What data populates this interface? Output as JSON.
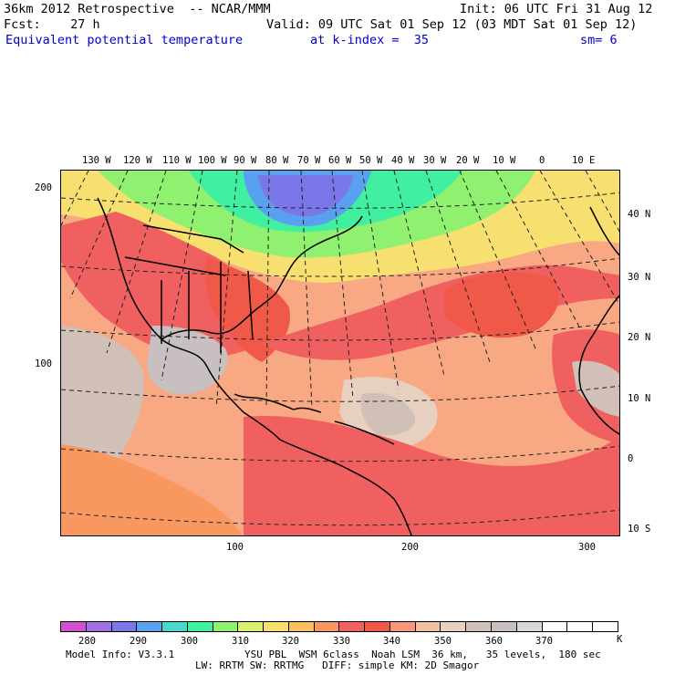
{
  "header": {
    "line1_left": "36km 2012 Retrospective  -- NCAR/MMM",
    "line1_right": "Init: 06 UTC Fri 31 Aug 12",
    "line2_left": "Fcst:    27 h",
    "line2_right": "Valid: 09 UTC Sat 01 Sep 12 (03 MDT Sat 01 Sep 12)",
    "line3_field": "Equivalent potential temperature",
    "line3_level": "at k-index =  35",
    "line3_smooth": "sm= 6"
  },
  "axes": {
    "top_lon": [
      "130 W",
      "120 W",
      "110 W",
      "100 W",
      "90 W",
      "80 W",
      "70 W",
      "60 W",
      "50 W",
      "40 W",
      "30 W",
      "20 W",
      "10 W",
      "0",
      "10 E"
    ],
    "right_lat": [
      "40 N",
      "30 N",
      "20 N",
      "10 N",
      "0",
      "10 S"
    ],
    "left_grid": [
      "200",
      "100"
    ],
    "bottom_grid": [
      "100",
      "200",
      "300"
    ]
  },
  "legend": {
    "values": [
      "280",
      "290",
      "300",
      "310",
      "320",
      "330",
      "340",
      "350",
      "360",
      "370"
    ],
    "unit": "K",
    "colors": [
      "#d050d0",
      "#a070e0",
      "#7a78e8",
      "#5aa0f0",
      "#4ad8c8",
      "#40f0a0",
      "#90f070",
      "#d8f070",
      "#f8e070",
      "#f8c060",
      "#f89860",
      "#f06060",
      "#f05848",
      "#f89878",
      "#f0c0a0",
      "#e8d0c0",
      "#d0c0b8",
      "#c8c0c0",
      "#d8d8d8",
      "#ffffff",
      "#ffffff",
      "#ffffff"
    ]
  },
  "footer": {
    "line1_left": "Model Info: V3.3.1",
    "line1_right": "YSU PBL  WSM 6class  Noah LSM  36 km,   35 levels,  180 sec",
    "line2": "LW: RRTM SW: RRTMG   DIFF: simple KM: 2D Smagor"
  }
}
